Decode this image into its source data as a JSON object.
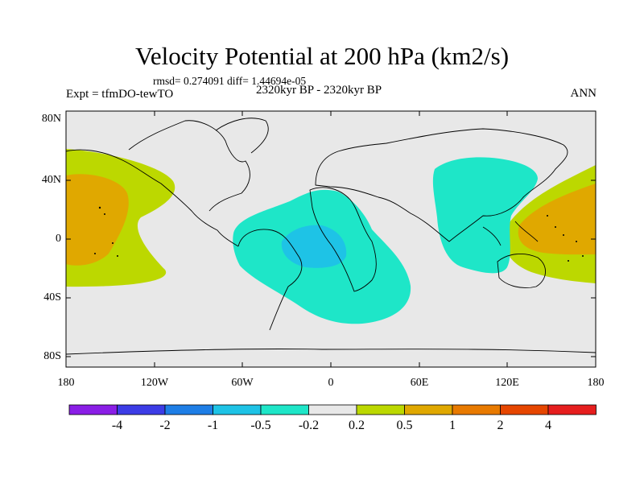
{
  "title": "Velocity Potential at 200 hPa (km2/s)",
  "stats": "rmsd= 0.274091 diff= 1.44694e-05",
  "experiment": "Expt = tfmDO-tewTO",
  "period": "2320kyr BP - 2320kyr BP",
  "season": "ANN",
  "lat_labels": [
    "80N",
    "40N",
    "0",
    "40S",
    "80S"
  ],
  "lon_labels": [
    "180",
    "120W",
    "60W",
    "0",
    "60E",
    "120E",
    "180"
  ],
  "colorbar": {
    "colors": [
      "#8a1ee6",
      "#3c3ce6",
      "#1e7ee6",
      "#1ec3e6",
      "#1ee6c8",
      "#e8e8e8",
      "#bcd800",
      "#e0a800",
      "#e87a00",
      "#e64600",
      "#e61e1e"
    ],
    "labels": [
      "-4",
      "-2",
      "-1",
      "-0.5",
      "-0.2",
      "0.2",
      "0.5",
      "1",
      "2",
      "4"
    ]
  },
  "field_colors": {
    "background": "#e8e8e8",
    "pos_low": "#bcd800",
    "pos_mid": "#e0a800",
    "neg_low": "#1ee6c8",
    "neg_mid": "#1ec3e6"
  }
}
